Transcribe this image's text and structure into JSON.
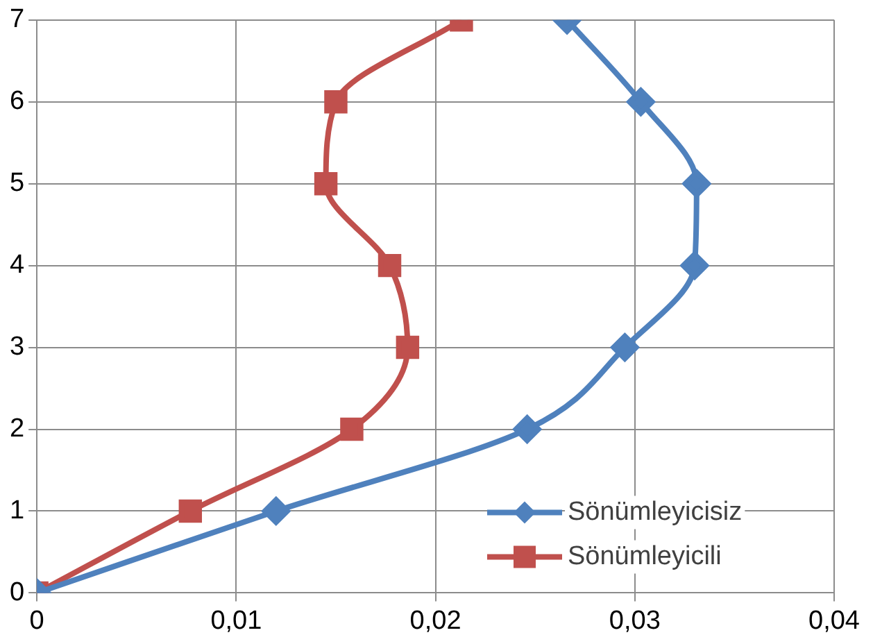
{
  "chart_data": {
    "type": "line",
    "xlim": [
      0,
      0.04
    ],
    "xticks": [
      0,
      {
        "value": 0.01,
        "label": "0,01"
      },
      {
        "value": 0.02,
        "label": "0,02"
      },
      {
        "value": 0.03,
        "label": "0,03"
      },
      {
        "value": 0.04,
        "label": "0,04"
      }
    ],
    "ylim": [
      0,
      7
    ],
    "yticks": [
      0,
      1,
      2,
      3,
      4,
      5,
      6,
      7
    ],
    "grid": true,
    "legend": "bottom right",
    "line_style": "solid",
    "series": [
      {
        "name": "Sönümleyicisiz",
        "color": "#4f81bd",
        "marker": "diamond",
        "x": [
          0,
          0.012,
          0.0246,
          0.0295,
          0.033,
          0.0331,
          0.0303,
          0.0266
        ],
        "values": [
          0,
          1,
          2,
          3,
          4,
          5,
          6,
          7
        ]
      },
      {
        "name": "Sönümleyicili",
        "color": "#c0504d",
        "marker": "square",
        "x": [
          0,
          0.0077,
          0.0158,
          0.0186,
          0.0177,
          0.0145,
          0.015,
          0.0213
        ],
        "values": [
          0,
          1,
          2,
          3,
          4,
          5,
          6,
          7
        ]
      }
    ]
  }
}
